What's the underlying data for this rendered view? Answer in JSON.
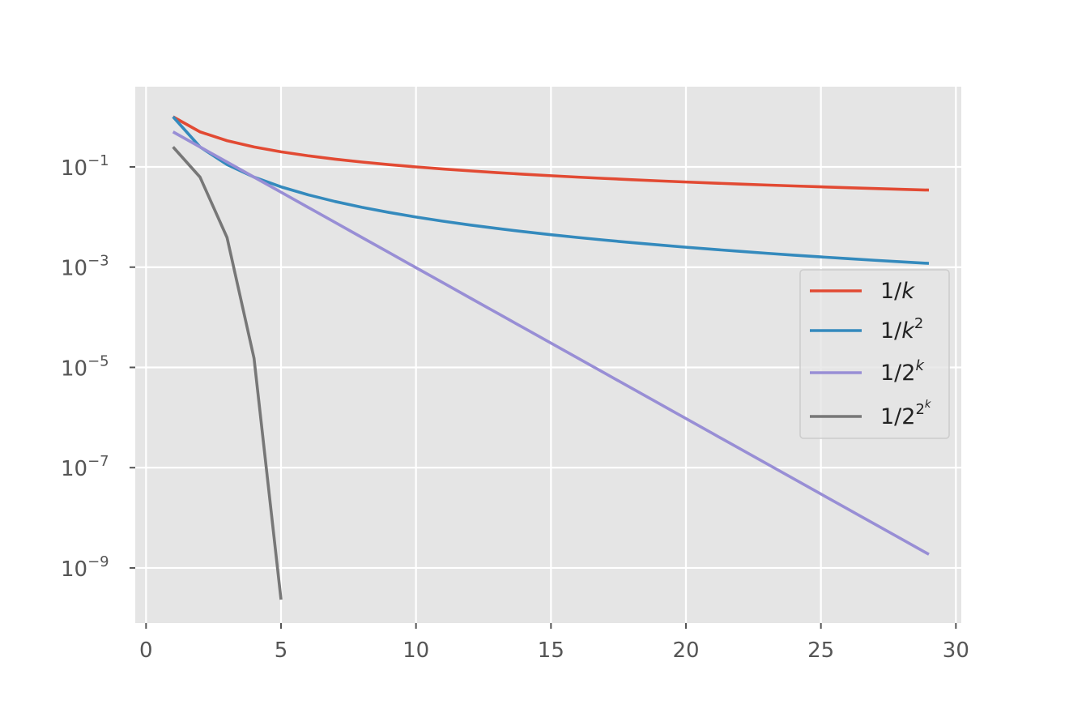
{
  "chart_data": {
    "type": "line",
    "title": "",
    "xlabel": "",
    "ylabel": "",
    "xlim": [
      -0.4,
      30.2
    ],
    "ylim": [
      -10.1,
      0.6
    ],
    "yscale": "log10",
    "grid": true,
    "legend_position": "center-right",
    "x_ticks": [
      {
        "value": 0,
        "label": "0"
      },
      {
        "value": 5,
        "label": "5"
      },
      {
        "value": 10,
        "label": "10"
      },
      {
        "value": 15,
        "label": "15"
      },
      {
        "value": 20,
        "label": "20"
      },
      {
        "value": 25,
        "label": "25"
      },
      {
        "value": 30,
        "label": "30"
      }
    ],
    "y_ticks": [
      {
        "exponent": -1,
        "base": "10",
        "sup": "−1"
      },
      {
        "exponent": -3,
        "base": "10",
        "sup": "−3"
      },
      {
        "exponent": -5,
        "base": "10",
        "sup": "−5"
      },
      {
        "exponent": -7,
        "base": "10",
        "sup": "−7"
      },
      {
        "exponent": -9,
        "base": "10",
        "sup": "−9"
      }
    ],
    "series": [
      {
        "key": "inv-k",
        "name": "1/k",
        "label_base": "1/",
        "label_var": "k",
        "label_sup": "",
        "label_sup2": "",
        "color": "#E24A33",
        "formula": "1/k",
        "x_range": [
          1,
          29
        ]
      },
      {
        "key": "inv-k2",
        "name": "1/k^2",
        "label_base": "1/",
        "label_var": "k",
        "label_sup": "2",
        "label_sup2": "",
        "color": "#348ABD",
        "formula": "1/k^2",
        "x_range": [
          1,
          29
        ]
      },
      {
        "key": "inv-2k",
        "name": "1/2^k",
        "label_base": "1/2",
        "label_var": "",
        "label_sup": "k",
        "label_sup2": "",
        "color": "#988ED5",
        "formula": "1/2^k",
        "x_range": [
          1,
          29
        ]
      },
      {
        "key": "inv-2-2k",
        "name": "1/2^(2^k)",
        "label_base": "1/2",
        "label_var": "",
        "label_sup": "2",
        "label_sup2": "k",
        "color": "#777777",
        "formula": "1/2^(2^k)",
        "x_range": [
          1,
          5
        ]
      }
    ]
  }
}
